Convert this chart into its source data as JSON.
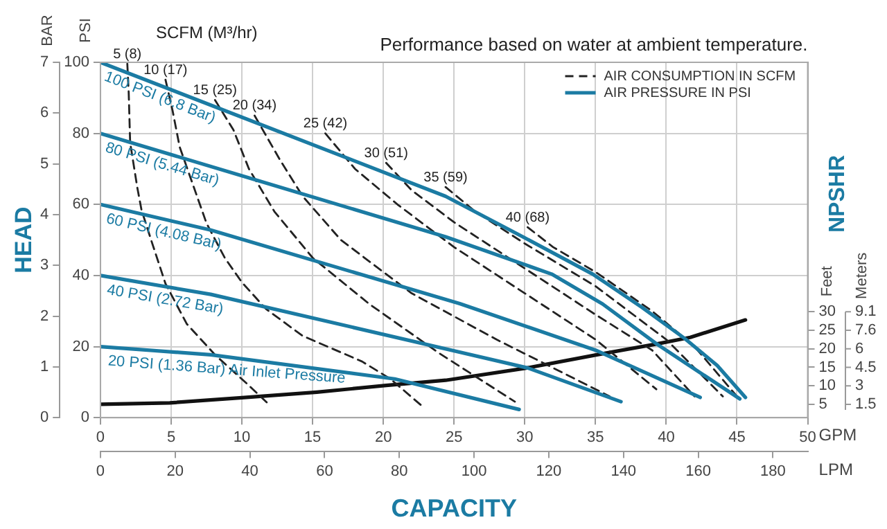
{
  "chart_data": {
    "type": "line",
    "title": "Performance based on water at ambient temperature.",
    "xlabel": "GPM",
    "x2label": "LPM",
    "ylabel": "PSI",
    "y2label": "BAR",
    "y3label": "Feet",
    "annotations": [
      "SCFM (M³/hr)",
      "HEAD",
      "NPSHR",
      "CAPACITY",
      "AIR CONSUMPTION IN SCFM",
      "AIR PRESSURE IN PSI",
      "Meters",
      "1.5",
      "3",
      "4.5",
      "6",
      "7.6",
      "9.1"
    ],
    "xlim": [
      0,
      50
    ],
    "xticks": [
      0,
      5,
      10,
      15,
      20,
      25,
      30,
      35,
      40,
      45,
      50
    ],
    "x2lim": [
      0,
      189.3
    ],
    "x2ticks": [
      0,
      20,
      40,
      60,
      80,
      100,
      120,
      140,
      160,
      180
    ],
    "ylim": [
      0,
      100
    ],
    "yticks": [
      0,
      20,
      40,
      60,
      80,
      100
    ],
    "y2lim": [
      0,
      7
    ],
    "y2ticks": [
      0,
      1,
      2,
      3,
      4,
      5,
      6,
      7
    ],
    "y3lim": [
      1.4,
      97.4
    ],
    "y3ticks": [
      5,
      10,
      15,
      20,
      25,
      30
    ],
    "grid": true,
    "marker": "none",
    "line_style": "solid",
    "series": [
      {
        "name": "100 PSI (6.8 Bar)",
        "color": "#1b7ba3",
        "x": [
          0,
          24.4,
          30,
          34.8,
          38.3,
          41.3,
          43.6,
          45.6
        ],
        "values": [
          100,
          62.3,
          50.6,
          40.4,
          31,
          22.3,
          14.7,
          5.7
        ]
      },
      {
        "name": "80 PSI (5.44 Bar)",
        "color": "#1b7ba3",
        "x": [
          0,
          24.4,
          31.9,
          35.5,
          39.3,
          45.2
        ],
        "values": [
          80,
          50.9,
          40.4,
          32,
          20.8,
          5.3
        ]
      },
      {
        "name": "60 PSI (4.08 Bar)",
        "color": "#1b7ba3",
        "x": [
          0,
          7.8,
          25.4,
          35,
          42.4
        ],
        "values": [
          60,
          52.8,
          32.1,
          19,
          5.7
        ]
      },
      {
        "name": "40 PSI (2.72 Bar)",
        "color": "#1b7ba3",
        "x": [
          0,
          7.8,
          30.2,
          36.8
        ],
        "values": [
          40,
          34.7,
          14,
          4.5
        ]
      },
      {
        "name": "20 PSI (1.36 Bar) Air Inlet Pressure",
        "color": "#1b7ba3",
        "x": [
          0,
          7.8,
          20.8,
          29.6
        ],
        "values": [
          20,
          17.7,
          10.9,
          2.3
        ]
      },
      {
        "name": "5 (8)",
        "color": "#222222",
        "line_style": "dashed",
        "x": [
          1.9,
          2,
          2.1,
          2.6,
          2.9,
          3.6,
          4.6,
          6.1,
          8.1,
          10.4,
          12
        ],
        "values": [
          99.6,
          91.3,
          77.4,
          64.9,
          58.5,
          49.8,
          37.7,
          26.4,
          17.7,
          9.4,
          3.4
        ]
      },
      {
        "name": "10 (17)",
        "color": "#222222",
        "line_style": "dashed",
        "x": [
          4.6,
          5.1,
          5.6,
          6.5,
          7.5,
          8.8,
          10,
          11.7,
          14.3,
          18.5,
          20.5,
          22.7
        ],
        "values": [
          95.1,
          86.4,
          76.2,
          66,
          54.7,
          44.9,
          38.1,
          30.6,
          23,
          15.8,
          10.9,
          3.4
        ]
      },
      {
        "name": "15 (25)",
        "color": "#222222",
        "line_style": "dashed",
        "x": [
          8.1,
          9.4,
          10.5,
          12.3,
          15,
          19,
          24,
          29.3
        ],
        "values": [
          89.4,
          81,
          70,
          58,
          45,
          32,
          18,
          4.5
        ]
      },
      {
        "name": "20 (34)",
        "color": "#222222",
        "line_style": "dashed",
        "x": [
          10.9,
          12.7,
          14.3,
          17,
          22,
          28,
          36
        ],
        "values": [
          85,
          72.5,
          62.3,
          50,
          35,
          22,
          6
        ]
      },
      {
        "name": "25 (42)",
        "color": "#222222",
        "line_style": "dashed",
        "x": [
          15.9,
          18,
          21,
          25,
          30,
          35,
          39.3
        ],
        "values": [
          80,
          70,
          60,
          48,
          35,
          22,
          8
        ]
      },
      {
        "name": "30 (51)",
        "color": "#222222",
        "line_style": "dashed",
        "x": [
          20.2,
          22,
          25,
          30,
          35,
          39,
          42
        ],
        "values": [
          71.7,
          64,
          55,
          42,
          29,
          19,
          6
        ]
      },
      {
        "name": "35 (59)",
        "color": "#222222",
        "line_style": "dashed",
        "x": [
          24.4,
          26.5,
          30,
          35,
          40,
          44
        ],
        "values": [
          64.9,
          58,
          49,
          37,
          22,
          6
        ]
      },
      {
        "name": "40 (68)",
        "color": "#222222",
        "line_style": "dashed",
        "x": [
          30.2,
          32,
          35,
          39,
          42,
          45
        ],
        "values": [
          53.6,
          48,
          41,
          30,
          20,
          6
        ]
      },
      {
        "color": "#111111",
        "axis": "y3",
        "x": [
          0,
          4.9,
          10,
          15.3,
          20.2,
          24.4,
          30.1,
          35.1,
          39.3,
          41.7,
          45.6
        ],
        "values": [
          5,
          5.4,
          6.8,
          8.3,
          10.1,
          11.5,
          14.8,
          18.4,
          21.3,
          23.1,
          27.8
        ]
      }
    ]
  }
}
